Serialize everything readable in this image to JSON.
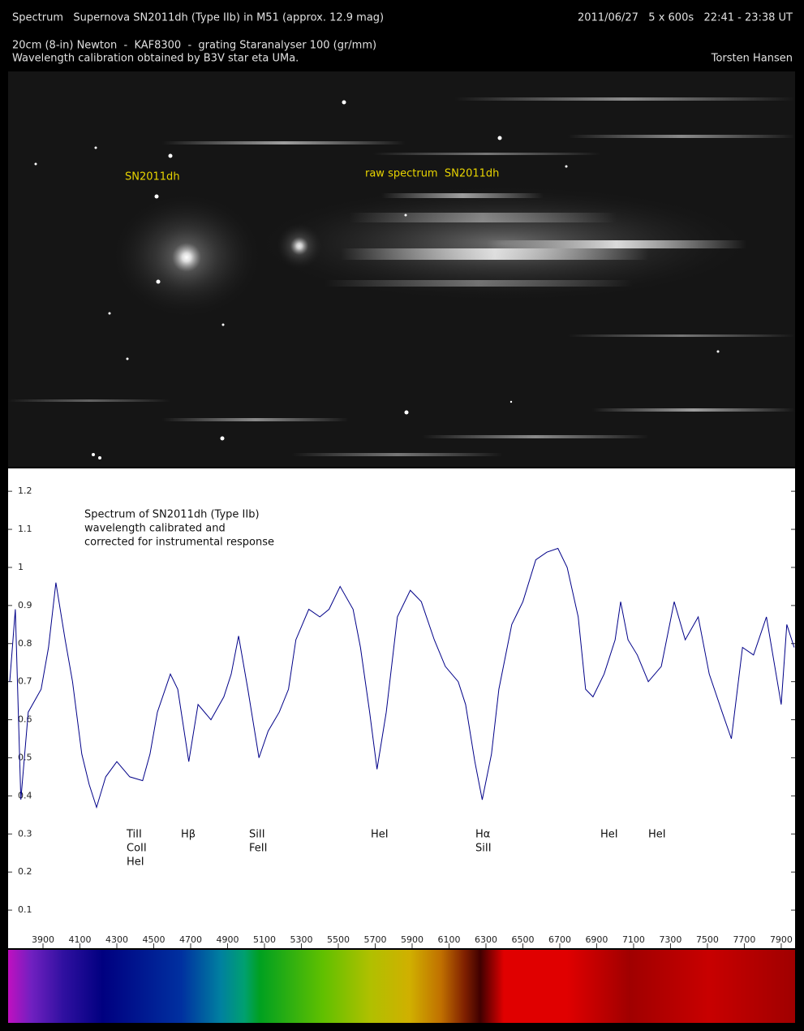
{
  "header": {
    "title": "Spectrum   Supernova SN2011dh (Type IIb) in M51 (approx. 12.9 mag)",
    "date": "2011/06/27   5 x 600s   22:41 - 23:38 UT",
    "setup": "20cm (8-in) Newton  -  KAF8300  -  grating Staranalyser 100 (gr/mm)",
    "calibration": "Wavelength calibration obtained by B3V star eta UMa.",
    "author": "Torsten Hansen"
  },
  "image": {
    "labels": [
      "SN2011dh",
      "raw spectrum  SN2011dh"
    ]
  },
  "chart_data": {
    "type": "line",
    "note": [
      "Spectrum of SN2011dh (Type IIb)",
      "wavelength calibrated and",
      "corrected for instrumental response"
    ],
    "annotations": [
      [
        "TiII",
        "CoII",
        "HeI"
      ],
      [
        "Hβ"
      ],
      [
        "SiII",
        "FeII"
      ],
      [
        "HeI"
      ],
      [
        "Hα",
        "SiII"
      ],
      [
        "HeI"
      ],
      [
        "HeI"
      ]
    ],
    "color": "#000088",
    "x": [
      3720,
      3750,
      3780,
      3820,
      3890,
      3930,
      3970,
      4020,
      4060,
      4110,
      4150,
      4190,
      4240,
      4300,
      4370,
      4440,
      4480,
      4520,
      4590,
      4630,
      4690,
      4740,
      4810,
      4880,
      4920,
      4960,
      5010,
      5070,
      5120,
      5180,
      5230,
      5270,
      5340,
      5400,
      5450,
      5510,
      5580,
      5620,
      5670,
      5710,
      5760,
      5820,
      5890,
      5950,
      6020,
      6080,
      6150,
      6190,
      6240,
      6280,
      6330,
      6370,
      6440,
      6500,
      6570,
      6630,
      6690,
      6740,
      6800,
      6840,
      6880,
      6940,
      7000,
      7030,
      7070,
      7120,
      7180,
      7250,
      7320,
      7380,
      7450,
      7510,
      7580,
      7630,
      7690,
      7750,
      7820,
      7900,
      7930,
      7970
    ],
    "values": [
      0.7,
      0.89,
      0.39,
      0.62,
      0.68,
      0.79,
      0.96,
      0.81,
      0.7,
      0.51,
      0.43,
      0.37,
      0.45,
      0.49,
      0.45,
      0.44,
      0.51,
      0.62,
      0.72,
      0.68,
      0.49,
      0.64,
      0.6,
      0.66,
      0.72,
      0.82,
      0.68,
      0.5,
      0.57,
      0.62,
      0.68,
      0.81,
      0.89,
      0.87,
      0.89,
      0.95,
      0.89,
      0.79,
      0.62,
      0.47,
      0.62,
      0.87,
      0.94,
      0.91,
      0.81,
      0.74,
      0.7,
      0.64,
      0.49,
      0.39,
      0.51,
      0.68,
      0.85,
      0.91,
      1.02,
      1.04,
      1.05,
      1.0,
      0.87,
      0.68,
      0.66,
      0.72,
      0.81,
      0.91,
      0.81,
      0.77,
      0.7,
      0.74,
      0.91,
      0.81,
      0.87,
      0.72,
      0.62,
      0.55,
      0.79,
      0.77,
      0.87,
      0.64,
      0.85,
      0.79
    ],
    "xlim": [
      3711,
      7975
    ],
    "ylim": [
      0,
      1.26
    ],
    "xticks": [
      3900,
      4100,
      4300,
      4500,
      4700,
      4900,
      5100,
      5300,
      5500,
      5700,
      5900,
      6100,
      6300,
      6500,
      6700,
      6900,
      7100,
      7300,
      7500,
      7700,
      7900
    ],
    "yticks": [
      0.1,
      0.2,
      0.3,
      0.4,
      0.5,
      0.6,
      0.7,
      0.8,
      0.9,
      1,
      1.1,
      1.2
    ]
  }
}
